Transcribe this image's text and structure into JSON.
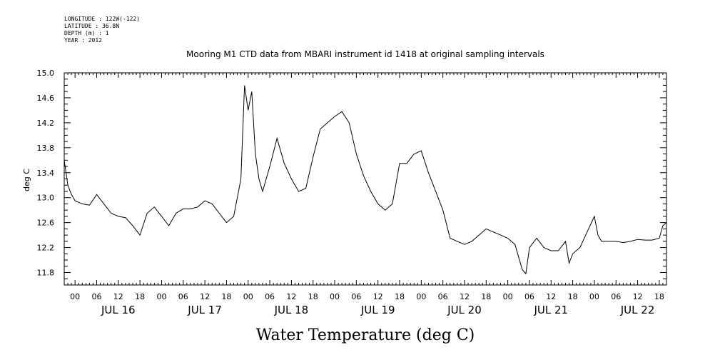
{
  "meta": {
    "longitude": "LONGITUDE : 122W(-122)",
    "latitude": "LATITUDE : 36.8N",
    "depth": "DEPTH (m) : 1",
    "year": "YEAR : 2012"
  },
  "chart_data": {
    "type": "line",
    "title": "Mooring M1 CTD data from MBARI instrument id 1418 at original sampling intervals",
    "xlabel": "Water Temperature (deg C)",
    "ylabel": "deg C",
    "ylim": [
      11.6,
      15.0
    ],
    "y_ticks": [
      "15.0",
      "14.6",
      "14.2",
      "13.8",
      "13.4",
      "13.0",
      "12.6",
      "12.2",
      "11.8"
    ],
    "xlim": [
      "2012-07-15T21:00",
      "2012-07-22T20:00"
    ],
    "hour_ticks": [
      "00",
      "06",
      "12",
      "18",
      "00",
      "06",
      "12",
      "18",
      "00",
      "06",
      "12",
      "18",
      "00",
      "06",
      "12",
      "18",
      "00",
      "06",
      "12",
      "18",
      "00",
      "06",
      "12",
      "18",
      "00",
      "06",
      "12",
      "18"
    ],
    "day_labels": [
      "JUL 16",
      "JUL 17",
      "JUL 18",
      "JUL 19",
      "JUL 20",
      "JUL 21",
      "JUL 22"
    ],
    "grid": false,
    "series": [
      {
        "x": [
          "2012-07-15T21:00",
          "2012-07-15T22:00",
          "2012-07-15T23:00",
          "2012-07-16T00:00",
          "2012-07-16T02:00",
          "2012-07-16T04:00",
          "2012-07-16T06:00",
          "2012-07-16T08:00",
          "2012-07-16T10:00",
          "2012-07-16T12:00",
          "2012-07-16T14:00",
          "2012-07-16T16:00",
          "2012-07-16T18:00",
          "2012-07-16T20:00",
          "2012-07-16T22:00",
          "2012-07-17T00:00",
          "2012-07-17T02:00",
          "2012-07-17T04:00",
          "2012-07-17T06:00",
          "2012-07-17T08:00",
          "2012-07-17T10:00",
          "2012-07-17T12:00",
          "2012-07-17T14:00",
          "2012-07-17T16:00",
          "2012-07-17T18:00",
          "2012-07-17T19:00",
          "2012-07-17T20:00",
          "2012-07-17T21:00",
          "2012-07-17T22:00",
          "2012-07-17T23:00",
          "2012-07-18T00:00",
          "2012-07-18T01:00",
          "2012-07-18T02:00",
          "2012-07-18T03:00",
          "2012-07-18T04:00",
          "2012-07-18T06:00",
          "2012-07-18T08:00",
          "2012-07-18T10:00",
          "2012-07-18T12:00",
          "2012-07-18T14:00",
          "2012-07-18T16:00",
          "2012-07-18T18:00",
          "2012-07-18T20:00",
          "2012-07-18T22:00",
          "2012-07-19T00:00",
          "2012-07-19T02:00",
          "2012-07-19T04:00",
          "2012-07-19T06:00",
          "2012-07-19T08:00",
          "2012-07-19T10:00",
          "2012-07-19T12:00",
          "2012-07-19T14:00",
          "2012-07-19T16:00",
          "2012-07-19T18:00",
          "2012-07-19T20:00",
          "2012-07-19T22:00",
          "2012-07-20T00:00",
          "2012-07-20T02:00",
          "2012-07-20T04:00",
          "2012-07-20T06:00",
          "2012-07-20T08:00",
          "2012-07-20T10:00",
          "2012-07-20T12:00",
          "2012-07-20T14:00",
          "2012-07-20T16:00",
          "2012-07-20T18:00",
          "2012-07-20T20:00",
          "2012-07-20T22:00",
          "2012-07-21T00:00",
          "2012-07-21T02:00",
          "2012-07-21T04:00",
          "2012-07-21T05:00",
          "2012-07-21T06:00",
          "2012-07-21T08:00",
          "2012-07-21T10:00",
          "2012-07-21T12:00",
          "2012-07-21T14:00",
          "2012-07-21T16:00",
          "2012-07-21T17:00",
          "2012-07-21T18:00",
          "2012-07-21T20:00",
          "2012-07-21T22:00",
          "2012-07-22T00:00",
          "2012-07-22T01:00",
          "2012-07-22T02:00",
          "2012-07-22T04:00",
          "2012-07-22T06:00",
          "2012-07-22T08:00",
          "2012-07-22T10:00",
          "2012-07-22T12:00",
          "2012-07-22T14:00",
          "2012-07-22T16:00",
          "2012-07-22T18:00",
          "2012-07-22T19:00",
          "2012-07-22T20:00"
        ],
        "y": [
          13.6,
          13.2,
          13.05,
          12.95,
          12.9,
          12.88,
          13.05,
          12.9,
          12.75,
          12.7,
          12.68,
          12.55,
          12.4,
          12.75,
          12.85,
          12.7,
          12.55,
          12.75,
          12.82,
          12.82,
          12.85,
          12.95,
          12.9,
          12.75,
          12.6,
          12.65,
          12.7,
          13.0,
          13.3,
          14.8,
          14.4,
          14.7,
          13.7,
          13.3,
          13.1,
          13.5,
          13.95,
          13.55,
          13.3,
          13.1,
          13.15,
          13.65,
          14.1,
          14.2,
          14.3,
          14.38,
          14.2,
          13.7,
          13.35,
          13.1,
          12.9,
          12.8,
          12.9,
          13.55,
          13.55,
          13.7,
          13.75,
          13.4,
          13.1,
          12.8,
          12.35,
          12.3,
          12.25,
          12.3,
          12.4,
          12.5,
          12.45,
          12.4,
          12.35,
          12.25,
          11.85,
          11.78,
          12.2,
          12.35,
          12.2,
          12.15,
          12.15,
          12.3,
          11.95,
          12.1,
          12.2,
          12.45,
          12.7,
          12.4,
          12.3,
          12.3,
          12.3,
          12.28,
          12.3,
          12.33,
          12.32,
          12.32,
          12.35,
          12.55,
          12.6
        ]
      }
    ]
  }
}
